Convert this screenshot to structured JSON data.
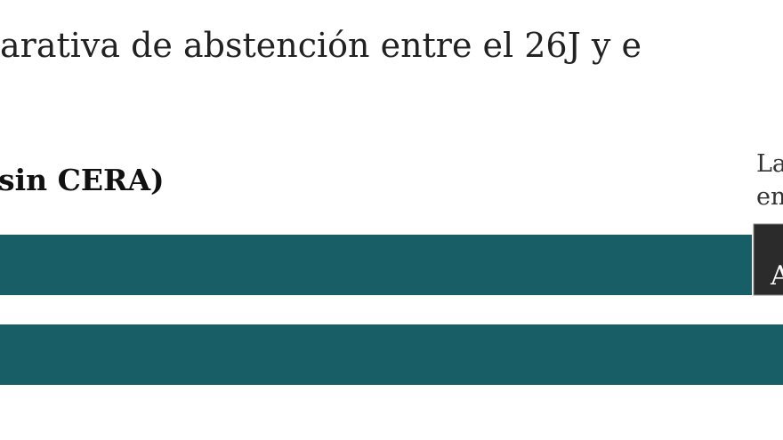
{
  "header": {
    "title": "arativa de abstención entre el 26J y e",
    "subtitle": "sin CERA)"
  },
  "side_note": {
    "line1": "La",
    "line2": "en"
  },
  "tooltip": {
    "label": "A"
  }
}
